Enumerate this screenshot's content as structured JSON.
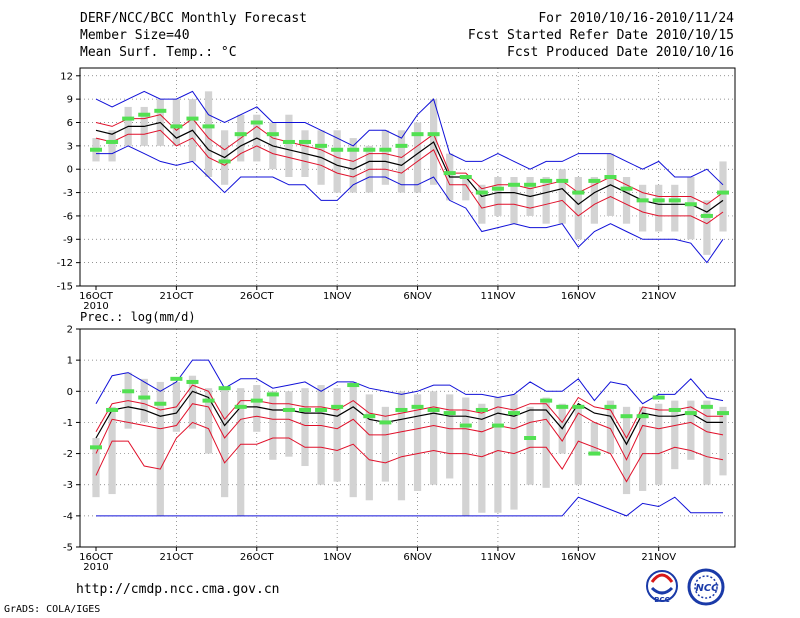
{
  "header": {
    "left": [
      "DERF/NCC/BCC Monthly Forecast",
      "Member Size=40",
      "Mean Surf. Temp.: °C"
    ],
    "right": [
      "For 2010/10/16-2010/11/24",
      "Fcst Started Refer Date 2010/10/15",
      "Fcst Produced Date 2010/10/16"
    ]
  },
  "precip_label": "Prec.: log(mm/d)",
  "footer": {
    "url": "http://cmdp.ncc.cma.gov.cn",
    "grads": "GrADS: COLA/IGES"
  },
  "logos": {
    "bcc": "BCC",
    "ncc": "NCC"
  },
  "colors": {
    "box": "#d3d3d3",
    "obs": "#52e052",
    "mean": "#000000",
    "spread": "#e0102a",
    "extreme": "#1010d8",
    "grid": "#707070"
  },
  "chart_data": [
    {
      "type": "line",
      "title": "Mean Surf. Temp.: °C",
      "ylim": [
        -15,
        13
      ],
      "yticks": [
        -15,
        -12,
        -9,
        -6,
        -3,
        0,
        3,
        6,
        9,
        12
      ],
      "xticks": [
        "16OCT",
        "21OCT",
        "26OCT",
        "1NOV",
        "6NOV",
        "11NOV",
        "16NOV",
        "21NOV"
      ],
      "xtick_year": "2010",
      "days": 40,
      "series": [
        {
          "name": "max",
          "values": [
            9,
            8,
            9,
            10,
            9,
            9,
            10,
            7,
            6,
            7,
            8,
            6,
            6,
            6,
            5,
            4,
            3,
            5,
            5,
            4,
            7,
            9,
            2,
            1,
            1,
            2,
            1,
            0,
            1,
            1,
            2,
            2,
            2,
            1,
            0,
            1,
            -1,
            -1,
            0,
            -2
          ]
        },
        {
          "name": "upper",
          "values": [
            6,
            5.5,
            6.5,
            6.5,
            7,
            5,
            6.5,
            4,
            2.5,
            4,
            5.5,
            4,
            3.5,
            3,
            2.5,
            1.5,
            1,
            2,
            2,
            1.5,
            3,
            4.5,
            -0.5,
            -0.5,
            -2.5,
            -2,
            -2,
            -2.5,
            -2,
            -1.5,
            -3,
            -2,
            -1,
            -2,
            -3,
            -3.5,
            -3.5,
            -3.5,
            -4.5,
            -3
          ]
        },
        {
          "name": "mean",
          "values": [
            5,
            4.5,
            5.5,
            5.5,
            6,
            4,
            5,
            2.5,
            1.5,
            3,
            4,
            3,
            2.5,
            2,
            1.5,
            0.5,
            0,
            1,
            1,
            0.5,
            2,
            3.5,
            -1,
            -1,
            -3.5,
            -3,
            -3,
            -3.5,
            -3,
            -2.5,
            -4.5,
            -3,
            -2,
            -3,
            -4,
            -4.5,
            -4.5,
            -4.5,
            -5.5,
            -4
          ]
        },
        {
          "name": "lower",
          "values": [
            4,
            3.5,
            4.5,
            4.5,
            5,
            3,
            4,
            1.5,
            0.5,
            2,
            3,
            2,
            1.5,
            1,
            0.5,
            -0.5,
            -1,
            0,
            0,
            -0.5,
            1,
            2.5,
            -2,
            -2,
            -5,
            -4.5,
            -4.5,
            -5,
            -4.5,
            -4,
            -6,
            -4.5,
            -3.5,
            -4.5,
            -5.5,
            -6,
            -6,
            -6,
            -7,
            -5.5
          ]
        },
        {
          "name": "min",
          "values": [
            2,
            2,
            3,
            2,
            1,
            0.5,
            1,
            -1,
            -3,
            -1,
            -1,
            -1,
            -2,
            -2,
            -4,
            -4,
            -2,
            -1,
            -1,
            -2,
            -2,
            -1,
            -4,
            -5,
            -8,
            -7.5,
            -7,
            -7.5,
            -7.5,
            -7,
            -10,
            -8,
            -7,
            -8,
            -9,
            -9,
            -9,
            -9.5,
            -12,
            -9
          ]
        },
        {
          "name": "obs",
          "values": [
            2.5,
            3.5,
            6.5,
            7,
            7.5,
            5.5,
            6.5,
            5.5,
            1,
            4.5,
            6,
            4.5,
            3.5,
            3.5,
            3,
            2.5,
            2.5,
            2.5,
            2.5,
            3,
            4.5,
            4.5,
            -0.5,
            -1,
            -3,
            -2.5,
            -2,
            -2,
            -1.5,
            -1.5,
            -3,
            -1.5,
            -1,
            -2.5,
            -4,
            -4,
            -4,
            -4.5,
            -6,
            -3
          ]
        },
        {
          "name": "box_hi",
          "values": [
            4,
            5,
            8,
            8,
            9,
            9,
            9,
            10,
            5,
            7,
            7,
            6,
            7,
            5,
            5,
            5,
            4,
            3,
            5,
            5,
            6,
            9,
            2,
            -1,
            -2,
            -1,
            -1,
            -1,
            -1,
            0,
            -1,
            -1,
            2,
            -1,
            -2,
            -2,
            -2,
            -1,
            -4,
            1
          ]
        },
        {
          "name": "box_lo",
          "values": [
            1,
            1,
            3,
            3,
            3,
            3,
            1,
            -1,
            -2,
            1,
            1,
            0,
            -1,
            -1,
            -2,
            -3,
            -3,
            -3,
            -2,
            -3,
            -3,
            -2,
            -4,
            -4,
            -7,
            -6,
            -7,
            -6,
            -7,
            -7,
            -9,
            -7,
            -6,
            -7,
            -8,
            -8,
            -8,
            -9,
            -11,
            -8
          ]
        }
      ]
    },
    {
      "type": "line",
      "title": "Prec.: log(mm/d)",
      "ylim": [
        -5,
        2
      ],
      "yticks": [
        -5,
        -4,
        -3,
        -2,
        -1,
        0,
        1,
        2
      ],
      "xticks": [
        "16OCT",
        "21OCT",
        "26OCT",
        "1NOV",
        "6NOV",
        "11NOV",
        "16NOV",
        "21NOV"
      ],
      "xtick_year": "2010",
      "days": 40,
      "series": [
        {
          "name": "max",
          "values": [
            -0.4,
            0.5,
            0.6,
            0.3,
            0,
            0.3,
            1,
            1,
            0.1,
            0.4,
            0.4,
            0.1,
            0.2,
            0.3,
            0,
            0.3,
            0.3,
            0.1,
            0,
            -0.1,
            0,
            0.2,
            0.2,
            -0.1,
            -0.1,
            -0.2,
            -0.1,
            0.3,
            0,
            0,
            0.4,
            -0.3,
            0.3,
            0.2,
            -0.4,
            -0.1,
            -0.1,
            0.4,
            -0.2,
            -0.3
          ]
        },
        {
          "name": "upper",
          "values": [
            -1.3,
            -0.4,
            -0.3,
            -0.4,
            -0.6,
            -0.5,
            0.2,
            0,
            -0.9,
            -0.3,
            -0.3,
            -0.4,
            -0.4,
            -0.5,
            -0.5,
            -0.6,
            -0.3,
            -0.7,
            -0.8,
            -0.7,
            -0.6,
            -0.5,
            -0.6,
            -0.6,
            -0.7,
            -0.5,
            -0.6,
            -0.4,
            -0.4,
            -1,
            -0.2,
            -0.5,
            -0.6,
            -1.5,
            -0.5,
            -0.6,
            -0.6,
            -0.5,
            -0.8,
            -0.8
          ]
        },
        {
          "name": "mean",
          "values": [
            -1.5,
            -0.6,
            -0.5,
            -0.6,
            -0.8,
            -0.7,
            0,
            -0.2,
            -1.1,
            -0.5,
            -0.5,
            -0.6,
            -0.6,
            -0.7,
            -0.7,
            -0.8,
            -0.5,
            -0.9,
            -1,
            -0.9,
            -0.8,
            -0.7,
            -0.8,
            -0.8,
            -0.9,
            -0.7,
            -0.8,
            -0.6,
            -0.6,
            -1.2,
            -0.4,
            -0.7,
            -0.8,
            -1.7,
            -0.7,
            -0.8,
            -0.8,
            -0.7,
            -1,
            -1
          ]
        },
        {
          "name": "lower",
          "values": [
            -2,
            -0.9,
            -1,
            -1.1,
            -1.2,
            -1.1,
            -0.4,
            -0.5,
            -1.5,
            -0.9,
            -0.8,
            -0.9,
            -0.9,
            -1.1,
            -1.1,
            -1.2,
            -0.9,
            -1.4,
            -1.4,
            -1.3,
            -1.2,
            -1.1,
            -1.2,
            -1.2,
            -1.3,
            -1.1,
            -1.2,
            -1,
            -0.9,
            -1.6,
            -0.7,
            -1,
            -1.2,
            -2.2,
            -1.1,
            -1.2,
            -1.1,
            -1,
            -1.3,
            -1.4
          ]
        },
        {
          "name": "min",
          "values": [
            -2.7,
            -1.6,
            -1.6,
            -2.4,
            -2.5,
            -1.5,
            -1,
            -1.2,
            -2.3,
            -1.7,
            -1.7,
            -1.5,
            -1.5,
            -1.8,
            -1.8,
            -1.9,
            -1.7,
            -2.2,
            -2.3,
            -2.1,
            -2,
            -1.9,
            -2,
            -2,
            -2.1,
            -1.9,
            -2,
            -1.8,
            -1.8,
            -2.5,
            -1.6,
            -1.8,
            -2,
            -2.9,
            -2,
            -2,
            -1.8,
            -1.9,
            -2.1,
            -2.2
          ]
        },
        {
          "name": "min_floor",
          "values": [
            -4,
            -4,
            -4,
            -4,
            -4,
            -4,
            -4,
            -4,
            -4,
            -4,
            -4,
            -4,
            -4,
            -4,
            -4,
            -4,
            -4,
            -4,
            -4,
            -4,
            -4,
            -4,
            -4,
            -4,
            -4,
            -4,
            -4,
            -4,
            -4,
            -4,
            -3.4,
            -3.6,
            -3.8,
            -4,
            -3.6,
            -3.7,
            -3.4,
            -3.9,
            -3.9,
            -3.9
          ]
        },
        {
          "name": "obs",
          "values": [
            -1.8,
            -0.6,
            0,
            -0.2,
            -0.4,
            0.4,
            0.3,
            -0.3,
            0.1,
            -0.5,
            -0.3,
            -0.1,
            -0.6,
            -0.6,
            -0.6,
            -0.5,
            0.2,
            -0.8,
            -1,
            -0.6,
            -0.5,
            -0.6,
            -0.7,
            -1.1,
            -0.6,
            -1.1,
            -0.7,
            -1.5,
            -0.3,
            -0.5,
            -0.5,
            -2,
            -0.5,
            -0.8,
            -0.8,
            -0.2,
            -0.6,
            -0.7,
            -0.5,
            -0.7
          ]
        },
        {
          "name": "box_hi",
          "values": [
            -1.5,
            -0.5,
            0.6,
            0.4,
            0.3,
            0.3,
            0.5,
            0.1,
            0.1,
            0.1,
            0.2,
            0,
            0,
            0.1,
            0.2,
            0.1,
            0.3,
            -0.1,
            -0.5,
            0,
            -0.1,
            0,
            -0.1,
            -0.2,
            -0.4,
            -0.2,
            -0.1,
            -0.5,
            -0.2,
            -0.4,
            -0.5,
            -1,
            -0.3,
            -0.5,
            -0.5,
            -0.4,
            -0.3,
            -0.3,
            -0.3,
            -0.5
          ]
        },
        {
          "name": "box_lo",
          "values": [
            -3.4,
            -3.3,
            -1.2,
            -1,
            -4,
            -1.3,
            -1.2,
            -2,
            -3.4,
            -4,
            -1.3,
            -2.2,
            -2.1,
            -2.4,
            -3,
            -2.9,
            -3.4,
            -3.5,
            -2.9,
            -3.5,
            -3.2,
            -3,
            -2.8,
            -4,
            -3.9,
            -3.9,
            -3.8,
            -3,
            -3.1,
            -2,
            -3,
            -2,
            -2,
            -3.3,
            -3.2,
            -3,
            -2.5,
            -2.2,
            -3,
            -2.7
          ]
        }
      ]
    }
  ]
}
